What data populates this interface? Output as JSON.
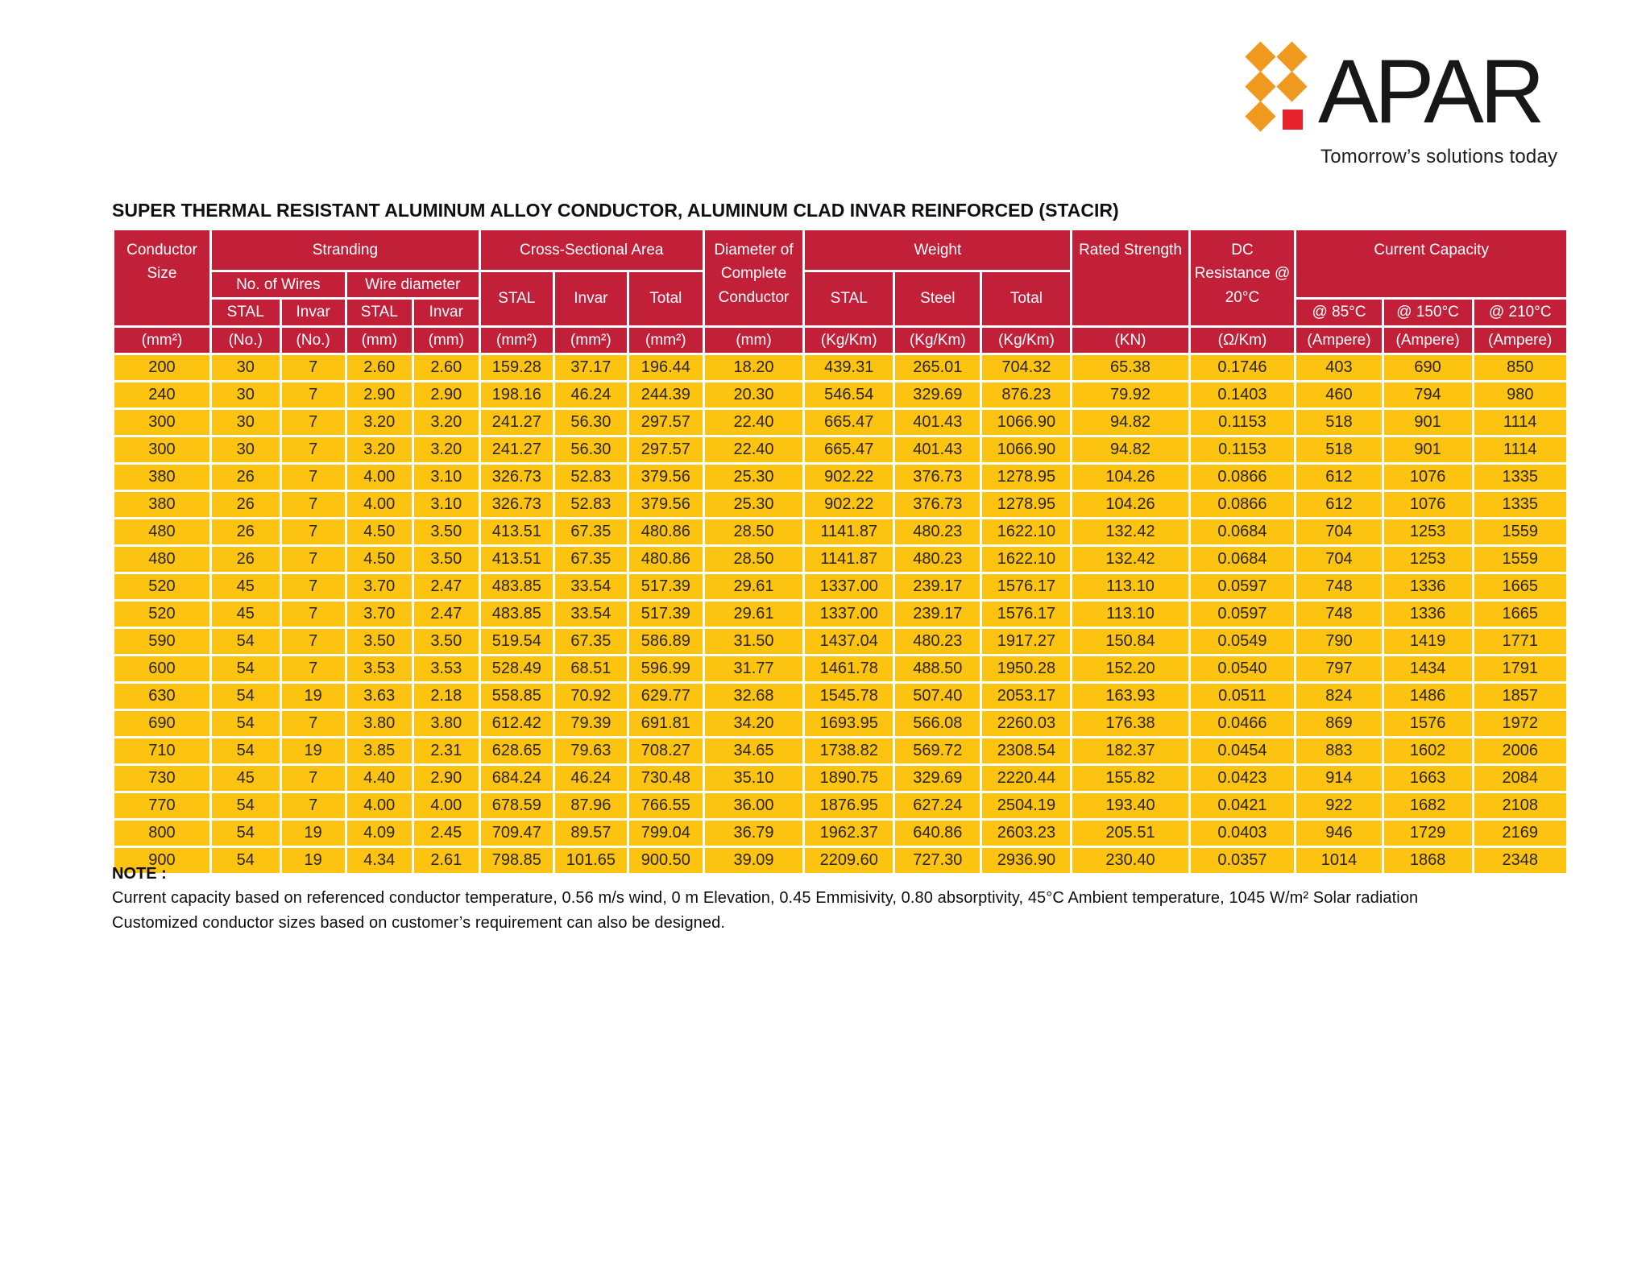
{
  "logo": {
    "brand": "APAR",
    "tagline": "Tomorrow’s solutions today"
  },
  "title": "SUPER THERMAL RESISTANT ALUMINUM ALLOY CONDUCTOR, ALUMINUM CLAD INVAR REINFORCED (STACIR)",
  "table": {
    "header": {
      "conductor_size": "Conductor Size",
      "stranding": "Stranding",
      "no_of_wires": "No. of Wires",
      "wire_diameter": "Wire diameter",
      "cross_sectional_area": "Cross-Sectional Area",
      "diameter_of_complete_conductor": "Diameter of Complete Conductor",
      "weight": "Weight",
      "rated_strength": "Rated Strength",
      "dc_resistance": "DC Resistance @ 20°C",
      "current_capacity": "Current Capacity",
      "stal": "STAL",
      "invar": "Invar",
      "steel": "Steel",
      "total": "Total",
      "at_85c": "@ 85°C",
      "at_150c": "@ 150°C",
      "at_210c": "@ 210°C"
    },
    "units": [
      "(mm²)",
      "(No.)",
      "(No.)",
      "(mm)",
      "(mm)",
      "(mm²)",
      "(mm²)",
      "(mm²)",
      "(mm)",
      "(Kg/Km)",
      "(Kg/Km)",
      "(Kg/Km)",
      "(KN)",
      "(Ω/Km)",
      "(Ampere)",
      "(Ampere)",
      "(Ampere)"
    ],
    "column_keys": [
      "conductor-size",
      "stal-wires",
      "invar-wires",
      "stal-wire-diameter",
      "invar-wire-diameter",
      "csa-stal",
      "csa-invar",
      "csa-total",
      "complete-conductor-diameter",
      "weight-stal",
      "weight-steel",
      "weight-total",
      "rated-strength",
      "dc-resistance",
      "capacity-85c",
      "capacity-150c",
      "capacity-210c"
    ],
    "rows": [
      [
        "200",
        "30",
        "7",
        "2.60",
        "2.60",
        "159.28",
        "37.17",
        "196.44",
        "18.20",
        "439.31",
        "265.01",
        "704.32",
        "65.38",
        "0.1746",
        "403",
        "690",
        "850"
      ],
      [
        "240",
        "30",
        "7",
        "2.90",
        "2.90",
        "198.16",
        "46.24",
        "244.39",
        "20.30",
        "546.54",
        "329.69",
        "876.23",
        "79.92",
        "0.1403",
        "460",
        "794",
        "980"
      ],
      [
        "300",
        "30",
        "7",
        "3.20",
        "3.20",
        "241.27",
        "56.30",
        "297.57",
        "22.40",
        "665.47",
        "401.43",
        "1066.90",
        "94.82",
        "0.1153",
        "518",
        "901",
        "1114"
      ],
      [
        "300",
        "30",
        "7",
        "3.20",
        "3.20",
        "241.27",
        "56.30",
        "297.57",
        "22.40",
        "665.47",
        "401.43",
        "1066.90",
        "94.82",
        "0.1153",
        "518",
        "901",
        "1114"
      ],
      [
        "380",
        "26",
        "7",
        "4.00",
        "3.10",
        "326.73",
        "52.83",
        "379.56",
        "25.30",
        "902.22",
        "376.73",
        "1278.95",
        "104.26",
        "0.0866",
        "612",
        "1076",
        "1335"
      ],
      [
        "380",
        "26",
        "7",
        "4.00",
        "3.10",
        "326.73",
        "52.83",
        "379.56",
        "25.30",
        "902.22",
        "376.73",
        "1278.95",
        "104.26",
        "0.0866",
        "612",
        "1076",
        "1335"
      ],
      [
        "480",
        "26",
        "7",
        "4.50",
        "3.50",
        "413.51",
        "67.35",
        "480.86",
        "28.50",
        "1141.87",
        "480.23",
        "1622.10",
        "132.42",
        "0.0684",
        "704",
        "1253",
        "1559"
      ],
      [
        "480",
        "26",
        "7",
        "4.50",
        "3.50",
        "413.51",
        "67.35",
        "480.86",
        "28.50",
        "1141.87",
        "480.23",
        "1622.10",
        "132.42",
        "0.0684",
        "704",
        "1253",
        "1559"
      ],
      [
        "520",
        "45",
        "7",
        "3.70",
        "2.47",
        "483.85",
        "33.54",
        "517.39",
        "29.61",
        "1337.00",
        "239.17",
        "1576.17",
        "113.10",
        "0.0597",
        "748",
        "1336",
        "1665"
      ],
      [
        "520",
        "45",
        "7",
        "3.70",
        "2.47",
        "483.85",
        "33.54",
        "517.39",
        "29.61",
        "1337.00",
        "239.17",
        "1576.17",
        "113.10",
        "0.0597",
        "748",
        "1336",
        "1665"
      ],
      [
        "590",
        "54",
        "7",
        "3.50",
        "3.50",
        "519.54",
        "67.35",
        "586.89",
        "31.50",
        "1437.04",
        "480.23",
        "1917.27",
        "150.84",
        "0.0549",
        "790",
        "1419",
        "1771"
      ],
      [
        "600",
        "54",
        "7",
        "3.53",
        "3.53",
        "528.49",
        "68.51",
        "596.99",
        "31.77",
        "1461.78",
        "488.50",
        "1950.28",
        "152.20",
        "0.0540",
        "797",
        "1434",
        "1791"
      ],
      [
        "630",
        "54",
        "19",
        "3.63",
        "2.18",
        "558.85",
        "70.92",
        "629.77",
        "32.68",
        "1545.78",
        "507.40",
        "2053.17",
        "163.93",
        "0.0511",
        "824",
        "1486",
        "1857"
      ],
      [
        "690",
        "54",
        "7",
        "3.80",
        "3.80",
        "612.42",
        "79.39",
        "691.81",
        "34.20",
        "1693.95",
        "566.08",
        "2260.03",
        "176.38",
        "0.0466",
        "869",
        "1576",
        "1972"
      ],
      [
        "710",
        "54",
        "19",
        "3.85",
        "2.31",
        "628.65",
        "79.63",
        "708.27",
        "34.65",
        "1738.82",
        "569.72",
        "2308.54",
        "182.37",
        "0.0454",
        "883",
        "1602",
        "2006"
      ],
      [
        "730",
        "45",
        "7",
        "4.40",
        "2.90",
        "684.24",
        "46.24",
        "730.48",
        "35.10",
        "1890.75",
        "329.69",
        "2220.44",
        "155.82",
        "0.0423",
        "914",
        "1663",
        "2084"
      ],
      [
        "770",
        "54",
        "7",
        "4.00",
        "4.00",
        "678.59",
        "87.96",
        "766.55",
        "36.00",
        "1876.95",
        "627.24",
        "2504.19",
        "193.40",
        "0.0421",
        "922",
        "1682",
        "2108"
      ],
      [
        "800",
        "54",
        "19",
        "4.09",
        "2.45",
        "709.47",
        "89.57",
        "799.04",
        "36.79",
        "1962.37",
        "640.86",
        "2603.23",
        "205.51",
        "0.0403",
        "946",
        "1729",
        "2169"
      ],
      [
        "900",
        "54",
        "19",
        "4.34",
        "2.61",
        "798.85",
        "101.65",
        "900.50",
        "39.09",
        "2209.60",
        "727.30",
        "2936.90",
        "230.40",
        "0.0357",
        "1014",
        "1868",
        "2348"
      ]
    ]
  },
  "note": {
    "label": "NOTE :",
    "lines": [
      "Current capacity based on referenced conductor temperature, 0.56 m/s wind, 0 m Elevation, 0.45 Emmisivity, 0.80 absorptivity, 45°C Ambient temperature, 1045 W/m² Solar radiation",
      "Customized conductor sizes based on customer’s requirement can also be designed."
    ]
  },
  "colors": {
    "header_red": "#C22039",
    "row_yellow": "#FDC311",
    "cell_text": "#2A2523",
    "logo_orange": "#F0991F",
    "logo_red": "#E8222A",
    "page_bg": "#FFFFFF"
  }
}
